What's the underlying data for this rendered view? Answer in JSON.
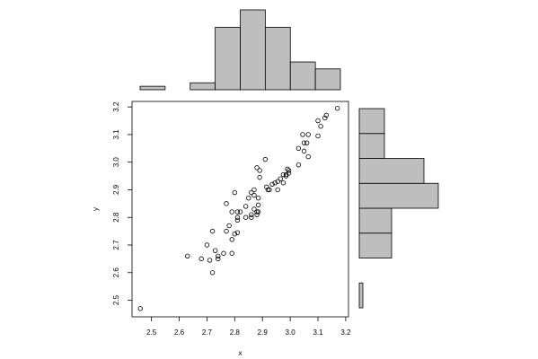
{
  "chart_data": [
    {
      "type": "scatter",
      "xlabel": "x",
      "ylabel": "y",
      "x": [
        2.46,
        2.63,
        2.68,
        2.7,
        2.71,
        2.72,
        2.72,
        2.73,
        2.74,
        2.74,
        2.76,
        2.77,
        2.77,
        2.78,
        2.79,
        2.79,
        2.79,
        2.8,
        2.8,
        2.81,
        2.81,
        2.81,
        2.81,
        2.82,
        2.84,
        2.84,
        2.85,
        2.86,
        2.86,
        2.86,
        2.87,
        2.87,
        2.87,
        2.88,
        2.88,
        2.885,
        2.885,
        2.88,
        2.89,
        2.89,
        2.885,
        2.91,
        2.915,
        2.92,
        2.925,
        2.935,
        2.945,
        2.955,
        2.955,
        2.965,
        2.975,
        2.975,
        2.985,
        2.985,
        2.99,
        2.995,
        2.995,
        3.03,
        3.03,
        3.045,
        3.05,
        3.05,
        3.06,
        3.065,
        3.065,
        3.1,
        3.1,
        3.11,
        3.125,
        3.13,
        3.17
      ],
      "values": [
        2.47,
        2.66,
        2.65,
        2.7,
        2.645,
        2.6,
        2.75,
        2.68,
        2.66,
        2.65,
        2.67,
        2.75,
        2.85,
        2.77,
        2.67,
        2.72,
        2.82,
        2.74,
        2.89,
        2.82,
        2.8,
        2.745,
        2.79,
        2.82,
        2.8,
        2.84,
        2.87,
        2.81,
        2.89,
        2.8,
        2.9,
        2.83,
        2.88,
        2.81,
        2.82,
        2.845,
        2.87,
        2.98,
        2.97,
        2.945,
        2.82,
        3.01,
        2.91,
        2.9,
        2.9,
        2.92,
        2.925,
        2.9,
        2.93,
        2.94,
        2.925,
        2.955,
        2.95,
        2.955,
        2.975,
        2.96,
        2.97,
        2.99,
        3.05,
        3.1,
        3.07,
        3.04,
        3.07,
        3.1,
        3.02,
        3.095,
        3.15,
        3.13,
        3.16,
        3.17,
        3.195
      ],
      "color": "#000000",
      "xlim": [
        2.43,
        3.21
      ],
      "ylim": [
        2.44,
        3.22
      ],
      "xticks": [
        2.5,
        2.6,
        2.7,
        2.8,
        2.9,
        {
          "value": 3,
          "label": "3.0"
        },
        3.1,
        3.2
      ],
      "yticks": [
        2.5,
        2.6,
        2.7,
        2.8,
        2.9,
        {
          "value": 3,
          "label": "3.0"
        },
        3.1,
        3.2
      ]
    },
    {
      "type": "histogram",
      "orientation": "vertical",
      "color": "#bebebe",
      "bins": [
        2.4,
        2.5,
        2.6,
        2.7,
        2.8,
        2.9,
        3.0,
        3.1,
        3.2
      ],
      "values": [
        1,
        0,
        2,
        18,
        23,
        18,
        8,
        6
      ]
    },
    {
      "type": "histogram",
      "orientation": "horizontal",
      "color": "#bebebe",
      "bins": [
        2.4,
        2.5,
        2.6,
        2.7,
        2.8,
        2.9,
        3.0,
        3.1,
        3.2
      ],
      "values": [
        1,
        0,
        9,
        9,
        22,
        18,
        7,
        7
      ]
    }
  ]
}
